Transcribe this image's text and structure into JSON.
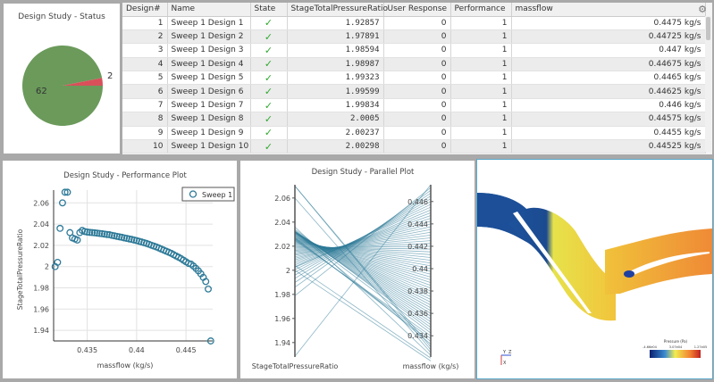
{
  "status_chart": {
    "title": "Design Study - Status",
    "slices": [
      {
        "label": "62",
        "value": 62,
        "color": "#6b9a5b"
      },
      {
        "label": "2",
        "value": 2,
        "color": "#d9505a"
      }
    ]
  },
  "table": {
    "columns": [
      "Design#",
      "Name",
      "State",
      "StageTotalPressureRatio",
      "User Response",
      "Performance",
      "massflow"
    ],
    "rows": [
      [
        "1",
        "Sweep 1 Design 1",
        "✓",
        "1.92857",
        "0",
        "1",
        "0.4475 kg/s"
      ],
      [
        "2",
        "Sweep 1 Design 2",
        "✓",
        "1.97891",
        "0",
        "1",
        "0.44725 kg/s"
      ],
      [
        "3",
        "Sweep 1 Design 3",
        "✓",
        "1.98594",
        "0",
        "1",
        "0.447 kg/s"
      ],
      [
        "4",
        "Sweep 1 Design 4",
        "✓",
        "1.98987",
        "0",
        "1",
        "0.44675 kg/s"
      ],
      [
        "5",
        "Sweep 1 Design 5",
        "✓",
        "1.99323",
        "0",
        "1",
        "0.4465 kg/s"
      ],
      [
        "6",
        "Sweep 1 Design 6",
        "✓",
        "1.99599",
        "0",
        "1",
        "0.44625 kg/s"
      ],
      [
        "7",
        "Sweep 1 Design 7",
        "✓",
        "1.99834",
        "0",
        "1",
        "0.446 kg/s"
      ],
      [
        "8",
        "Sweep 1 Design 8",
        "✓",
        "2.0005",
        "0",
        "1",
        "0.44575 kg/s"
      ],
      [
        "9",
        "Sweep 1 Design 9",
        "✓",
        "2.00237",
        "0",
        "1",
        "0.4455 kg/s"
      ],
      [
        "10",
        "Sweep 1 Design 10",
        "✓",
        "2.00298",
        "0",
        "1",
        "0.44525 kg/s"
      ]
    ]
  },
  "chart_data": [
    {
      "type": "pie",
      "title": "Design Study - Status",
      "categories": [
        "62",
        "2"
      ],
      "values": [
        62,
        2
      ]
    },
    {
      "type": "scatter",
      "title": "Design Study - Performance Plot",
      "xlabel": "massflow (kg/s)",
      "ylabel": "StageTotalPressureRatio",
      "legend": "Sweep 1",
      "legend_position": "top-right",
      "xlim": [
        0.4316,
        0.4477
      ],
      "ylim": [
        1.93,
        2.072
      ],
      "xticks": [
        "0.435",
        "0.44",
        "0.445"
      ],
      "yticks": [
        "2.06",
        "2.04",
        "2.02",
        "2",
        "1.98",
        "1.96",
        "1.94"
      ],
      "massflow_start": 0.4475,
      "massflow_step": -0.00025,
      "ratios": [
        1.92857,
        1.97891,
        1.98594,
        1.98987,
        1.99323,
        1.99599,
        1.99834,
        2.0005,
        2.00237,
        2.00298,
        2.0045,
        2.006,
        2.0075,
        2.0088,
        2.01,
        2.0112,
        2.0125,
        2.0135,
        2.0145,
        2.0155,
        2.0165,
        2.0175,
        2.0185,
        2.0193,
        2.0201,
        2.021,
        2.0218,
        2.0225,
        2.0232,
        2.0238,
        2.0245,
        2.025,
        2.0256,
        2.026,
        2.0266,
        2.027,
        2.0276,
        2.028,
        2.0285,
        2.029,
        2.0294,
        2.03,
        2.0302,
        2.0306,
        2.031,
        2.0312,
        2.0315,
        2.0318,
        2.032,
        2.0322,
        2.0325,
        2.033,
        2.034,
        2.032,
        2.025,
        2.026,
        2.027,
        2.032,
        2.07,
        2.07,
        2.06,
        2.036,
        2.004,
        2.0
      ]
    },
    {
      "type": "line",
      "subtype": "parallel",
      "title": "Design Study - Parallel Plot",
      "axes": [
        "StageTotalPressureRatio",
        "massflow (kg/s)"
      ],
      "left_range": [
        1.928,
        2.071
      ],
      "right_range": [
        0.4321,
        0.4475
      ],
      "left_ticks": [
        "2.06",
        "2.04",
        "2.02",
        "2",
        "1.98",
        "1.96",
        "1.94"
      ],
      "right_ticks": [
        "0.446",
        "0.444",
        "0.442",
        "0.44",
        "0.438",
        "0.436",
        "0.434"
      ]
    }
  ],
  "cfd": {
    "legend_title": "Pressure (Pa)",
    "legend_min": "-4.66e04",
    "legend_mid": "3.07e04",
    "legend_max": "1.27e05",
    "axis_labels": [
      "Y",
      "Z",
      "X"
    ]
  },
  "colors": {
    "series": "#2e7a98",
    "check": "#2fa82f"
  }
}
